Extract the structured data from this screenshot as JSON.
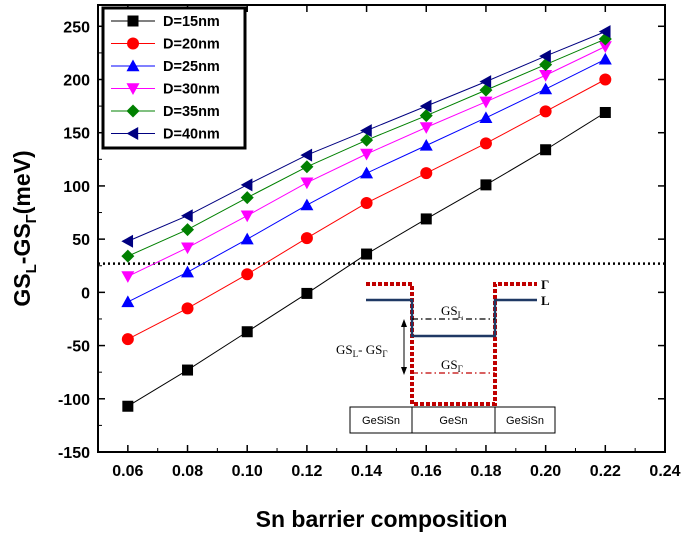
{
  "chart_data": {
    "type": "line",
    "title": "",
    "xlabel": "Sn barrier composition",
    "ylabel": {
      "base": "GS",
      "sub1": "L",
      "mid": "-GS",
      "sub2": "Γ",
      "unit": "(meV)"
    },
    "xlim": [
      0.05,
      0.24
    ],
    "ylim": [
      -150,
      270
    ],
    "xticks": [
      0.06,
      0.08,
      0.1,
      0.12,
      0.14,
      0.16,
      0.18,
      0.2,
      0.22,
      0.24
    ],
    "xtick_labels": [
      "0.06",
      "0.08",
      "0.10",
      "0.12",
      "0.14",
      "0.16",
      "0.18",
      "0.20",
      "0.22",
      "0.24"
    ],
    "yticks": [
      -150,
      -100,
      -50,
      0,
      50,
      100,
      150,
      200,
      250
    ],
    "ytick_labels": [
      "-150",
      "-100",
      "-50",
      "0",
      "50",
      "100",
      "150",
      "200",
      "250"
    ],
    "x": [
      0.06,
      0.08,
      0.1,
      0.12,
      0.14,
      0.16,
      0.18,
      0.2,
      0.22
    ],
    "reference_line_y": 27,
    "legend_position": "top-left",
    "grid": false,
    "series": [
      {
        "name": "D=15nm",
        "color": "#000000",
        "marker": "square",
        "values": [
          -107,
          -73,
          -37,
          -1,
          36,
          69,
          101,
          134,
          169
        ]
      },
      {
        "name": "D=20nm",
        "color": "#ff0000",
        "marker": "circle",
        "values": [
          -44,
          -15,
          17,
          51,
          84,
          112,
          140,
          170,
          200
        ]
      },
      {
        "name": "D=25nm",
        "color": "#0000ff",
        "marker": "triangle-up",
        "values": [
          -9,
          19,
          50,
          82,
          112,
          138,
          164,
          191,
          219
        ]
      },
      {
        "name": "D=30nm",
        "color": "#ff00ff",
        "marker": "triangle-down",
        "values": [
          15,
          42,
          72,
          103,
          130,
          155,
          179,
          204,
          231
        ]
      },
      {
        "name": "D=35nm",
        "color": "#008000",
        "marker": "diamond",
        "values": [
          34,
          59,
          89,
          118,
          143,
          166,
          190,
          214,
          238
        ]
      },
      {
        "name": "D=40nm",
        "color": "#000080",
        "marker": "triangle-left",
        "values": [
          48,
          72,
          101,
          129,
          152,
          175,
          198,
          222,
          245
        ]
      }
    ],
    "inset": {
      "gamma_label": "Γ",
      "l_label": "L",
      "gsl_label": {
        "base": "GS",
        "sub": "L"
      },
      "gsg_label": {
        "base": "GS",
        "sub": "Γ"
      },
      "diff_label": {
        "a": "GS",
        "asub": "L",
        "b": "- GS",
        "bsub": "Γ"
      },
      "layers": [
        "GeSiSn",
        "GeSn",
        "GeSiSn"
      ],
      "gamma_color": "#c00000",
      "l_color": "#1f3864"
    }
  }
}
